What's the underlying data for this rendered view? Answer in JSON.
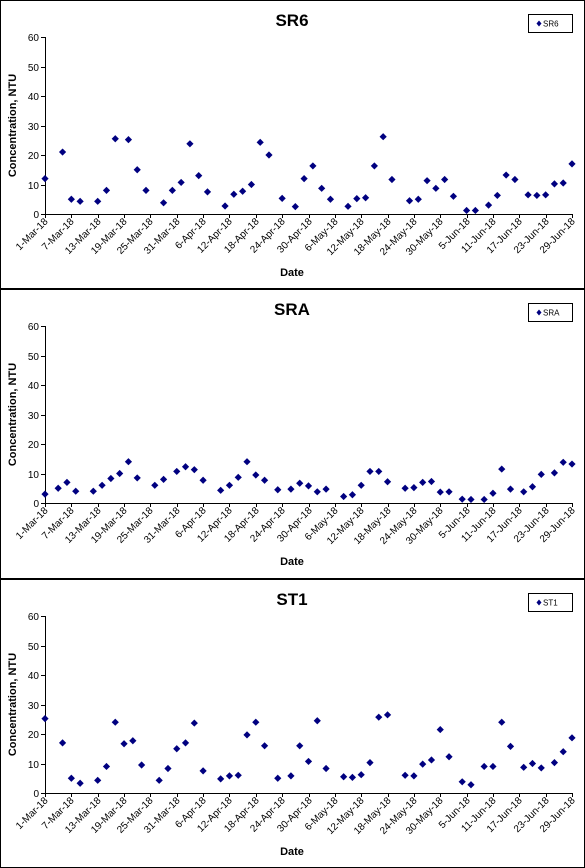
{
  "color": "#000080",
  "chart_data": [
    {
      "type": "scatter",
      "title": "SR6",
      "xlabel": "Date",
      "ylabel": "Concentration, NTU",
      "legend": "SR6",
      "legend_position": "top-right",
      "ylim": [
        0,
        60
      ],
      "yticks": [
        0,
        10,
        20,
        30,
        40,
        50,
        60
      ],
      "xlim": [
        "2018-03-01",
        "2018-06-29"
      ],
      "xtick_labels": [
        "1-Mar-18",
        "7-Mar-18",
        "13-Mar-18",
        "19-Mar-18",
        "25-Mar-18",
        "31-Mar-18",
        "6-Apr-18",
        "12-Apr-18",
        "18-Apr-18",
        "24-Apr-18",
        "30-Apr-18",
        "6-May-18",
        "12-May-18",
        "18-May-18",
        "24-May-18",
        "30-May-18",
        "5-Jun-18",
        "11-Jun-18",
        "17-Jun-18",
        "23-Jun-18",
        "29-Jun-18"
      ],
      "grid": false,
      "points": [
        {
          "x": "2018-03-01",
          "y": 12
        },
        {
          "x": "2018-03-05",
          "y": 21
        },
        {
          "x": "2018-03-07",
          "y": 5
        },
        {
          "x": "2018-03-09",
          "y": 4.3
        },
        {
          "x": "2018-03-13",
          "y": 4.3
        },
        {
          "x": "2018-03-15",
          "y": 8
        },
        {
          "x": "2018-03-17",
          "y": 25.5
        },
        {
          "x": "2018-03-20",
          "y": 25.2
        },
        {
          "x": "2018-03-22",
          "y": 15
        },
        {
          "x": "2018-03-24",
          "y": 8
        },
        {
          "x": "2018-03-28",
          "y": 3.8
        },
        {
          "x": "2018-03-30",
          "y": 8
        },
        {
          "x": "2018-04-01",
          "y": 10.7
        },
        {
          "x": "2018-04-03",
          "y": 23.8
        },
        {
          "x": "2018-04-05",
          "y": 13
        },
        {
          "x": "2018-04-07",
          "y": 7.5
        },
        {
          "x": "2018-04-11",
          "y": 2.7
        },
        {
          "x": "2018-04-13",
          "y": 6.7
        },
        {
          "x": "2018-04-15",
          "y": 7.7
        },
        {
          "x": "2018-04-17",
          "y": 10
        },
        {
          "x": "2018-04-19",
          "y": 24.3
        },
        {
          "x": "2018-04-21",
          "y": 20
        },
        {
          "x": "2018-04-24",
          "y": 5.3
        },
        {
          "x": "2018-04-27",
          "y": 2.5
        },
        {
          "x": "2018-04-29",
          "y": 12
        },
        {
          "x": "2018-05-01",
          "y": 16.3
        },
        {
          "x": "2018-05-03",
          "y": 8.7
        },
        {
          "x": "2018-05-05",
          "y": 5
        },
        {
          "x": "2018-05-09",
          "y": 2.6
        },
        {
          "x": "2018-05-11",
          "y": 5.2
        },
        {
          "x": "2018-05-13",
          "y": 5.5
        },
        {
          "x": "2018-05-15",
          "y": 16.3
        },
        {
          "x": "2018-05-17",
          "y": 26.2
        },
        {
          "x": "2018-05-19",
          "y": 11.7
        },
        {
          "x": "2018-05-23",
          "y": 4.5
        },
        {
          "x": "2018-05-25",
          "y": 5
        },
        {
          "x": "2018-05-27",
          "y": 11.3
        },
        {
          "x": "2018-05-29",
          "y": 8.7
        },
        {
          "x": "2018-05-31",
          "y": 11.7
        },
        {
          "x": "2018-06-02",
          "y": 6
        },
        {
          "x": "2018-06-05",
          "y": 1.2
        },
        {
          "x": "2018-06-07",
          "y": 1.2
        },
        {
          "x": "2018-06-10",
          "y": 3
        },
        {
          "x": "2018-06-12",
          "y": 6.3
        },
        {
          "x": "2018-06-14",
          "y": 13.2
        },
        {
          "x": "2018-06-16",
          "y": 11.7
        },
        {
          "x": "2018-06-19",
          "y": 6.5
        },
        {
          "x": "2018-06-21",
          "y": 6.3
        },
        {
          "x": "2018-06-23",
          "y": 6.5
        },
        {
          "x": "2018-06-25",
          "y": 10.2
        },
        {
          "x": "2018-06-27",
          "y": 10.5
        },
        {
          "x": "2018-06-29",
          "y": 17
        }
      ]
    },
    {
      "type": "scatter",
      "title": "SRA",
      "xlabel": "Date",
      "ylabel": "Concentration, NTU",
      "legend": "SRA",
      "legend_position": "top-right",
      "ylim": [
        0,
        60
      ],
      "yticks": [
        0,
        10,
        20,
        30,
        40,
        50,
        60
      ],
      "xlim": [
        "2018-03-01",
        "2018-06-29"
      ],
      "xtick_labels": [
        "1-Mar-18",
        "7-Mar-18",
        "13-Mar-18",
        "19-Mar-18",
        "25-Mar-18",
        "31-Mar-18",
        "6-Apr-18",
        "12-Apr-18",
        "18-Apr-18",
        "24-Apr-18",
        "30-Apr-18",
        "6-May-18",
        "12-May-18",
        "18-May-18",
        "24-May-18",
        "30-May-18",
        "5-Jun-18",
        "11-Jun-18",
        "17-Jun-18",
        "23-Jun-18",
        "29-Jun-18"
      ],
      "grid": false,
      "points": [
        {
          "x": "2018-03-01",
          "y": 3
        },
        {
          "x": "2018-03-04",
          "y": 5
        },
        {
          "x": "2018-03-06",
          "y": 7
        },
        {
          "x": "2018-03-08",
          "y": 4
        },
        {
          "x": "2018-03-12",
          "y": 4
        },
        {
          "x": "2018-03-14",
          "y": 6
        },
        {
          "x": "2018-03-16",
          "y": 8.3
        },
        {
          "x": "2018-03-18",
          "y": 10
        },
        {
          "x": "2018-03-20",
          "y": 14
        },
        {
          "x": "2018-03-22",
          "y": 8.5
        },
        {
          "x": "2018-03-26",
          "y": 6
        },
        {
          "x": "2018-03-28",
          "y": 8
        },
        {
          "x": "2018-03-31",
          "y": 10.7
        },
        {
          "x": "2018-04-02",
          "y": 12.3
        },
        {
          "x": "2018-04-04",
          "y": 11.3
        },
        {
          "x": "2018-04-06",
          "y": 7.7
        },
        {
          "x": "2018-04-10",
          "y": 4.3
        },
        {
          "x": "2018-04-12",
          "y": 6
        },
        {
          "x": "2018-04-14",
          "y": 8.7
        },
        {
          "x": "2018-04-16",
          "y": 14
        },
        {
          "x": "2018-04-18",
          "y": 9.5
        },
        {
          "x": "2018-04-20",
          "y": 7.7
        },
        {
          "x": "2018-04-23",
          "y": 4.5
        },
        {
          "x": "2018-04-26",
          "y": 4.7
        },
        {
          "x": "2018-04-28",
          "y": 6.7
        },
        {
          "x": "2018-04-30",
          "y": 5.8
        },
        {
          "x": "2018-05-02",
          "y": 3.8
        },
        {
          "x": "2018-05-04",
          "y": 4.7
        },
        {
          "x": "2018-05-08",
          "y": 2.2
        },
        {
          "x": "2018-05-10",
          "y": 2.8
        },
        {
          "x": "2018-05-12",
          "y": 6
        },
        {
          "x": "2018-05-14",
          "y": 10.7
        },
        {
          "x": "2018-05-16",
          "y": 10.7
        },
        {
          "x": "2018-05-18",
          "y": 7.2
        },
        {
          "x": "2018-05-22",
          "y": 5
        },
        {
          "x": "2018-05-24",
          "y": 5.2
        },
        {
          "x": "2018-05-26",
          "y": 7
        },
        {
          "x": "2018-05-28",
          "y": 7.3
        },
        {
          "x": "2018-05-30",
          "y": 3.7
        },
        {
          "x": "2018-06-01",
          "y": 3.8
        },
        {
          "x": "2018-06-04",
          "y": 1.3
        },
        {
          "x": "2018-06-06",
          "y": 1.2
        },
        {
          "x": "2018-06-09",
          "y": 1.2
        },
        {
          "x": "2018-06-11",
          "y": 3.3
        },
        {
          "x": "2018-06-13",
          "y": 11.5
        },
        {
          "x": "2018-06-15",
          "y": 4.7
        },
        {
          "x": "2018-06-18",
          "y": 3.8
        },
        {
          "x": "2018-06-20",
          "y": 5.5
        },
        {
          "x": "2018-06-22",
          "y": 9.7
        },
        {
          "x": "2018-06-25",
          "y": 10.2
        },
        {
          "x": "2018-06-27",
          "y": 13.8
        },
        {
          "x": "2018-06-29",
          "y": 13.2
        }
      ]
    },
    {
      "type": "scatter",
      "title": "ST1",
      "xlabel": "Date",
      "ylabel": "Concentration, NTU",
      "legend": "ST1",
      "legend_position": "top-right",
      "ylim": [
        0,
        60
      ],
      "yticks": [
        0,
        10,
        20,
        30,
        40,
        50,
        60
      ],
      "xlim": [
        "2018-03-01",
        "2018-06-29"
      ],
      "xtick_labels": [
        "1-Mar-18",
        "7-Mar-18",
        "13-Mar-18",
        "19-Mar-18",
        "25-Mar-18",
        "31-Mar-18",
        "6-Apr-18",
        "12-Apr-18",
        "18-Apr-18",
        "24-Apr-18",
        "30-Apr-18",
        "6-May-18",
        "12-May-18",
        "18-May-18",
        "24-May-18",
        "30-May-18",
        "5-Jun-18",
        "11-Jun-18",
        "17-Jun-18",
        "23-Jun-18",
        "29-Jun-18"
      ],
      "grid": false,
      "points": [
        {
          "x": "2018-03-01",
          "y": 25.2
        },
        {
          "x": "2018-03-05",
          "y": 17
        },
        {
          "x": "2018-03-07",
          "y": 5
        },
        {
          "x": "2018-03-09",
          "y": 3.3
        },
        {
          "x": "2018-03-13",
          "y": 4.3
        },
        {
          "x": "2018-03-15",
          "y": 9
        },
        {
          "x": "2018-03-17",
          "y": 24
        },
        {
          "x": "2018-03-19",
          "y": 16.7
        },
        {
          "x": "2018-03-21",
          "y": 17.7
        },
        {
          "x": "2018-03-23",
          "y": 9.5
        },
        {
          "x": "2018-03-27",
          "y": 4.3
        },
        {
          "x": "2018-03-29",
          "y": 8.3
        },
        {
          "x": "2018-03-31",
          "y": 15
        },
        {
          "x": "2018-04-02",
          "y": 17
        },
        {
          "x": "2018-04-04",
          "y": 23.7
        },
        {
          "x": "2018-04-06",
          "y": 7.5
        },
        {
          "x": "2018-04-10",
          "y": 4.8
        },
        {
          "x": "2018-04-12",
          "y": 5.8
        },
        {
          "x": "2018-04-14",
          "y": 6
        },
        {
          "x": "2018-04-16",
          "y": 19.7
        },
        {
          "x": "2018-04-18",
          "y": 24
        },
        {
          "x": "2018-04-20",
          "y": 16
        },
        {
          "x": "2018-04-23",
          "y": 5
        },
        {
          "x": "2018-04-26",
          "y": 5.8
        },
        {
          "x": "2018-04-28",
          "y": 16
        },
        {
          "x": "2018-04-30",
          "y": 10.7
        },
        {
          "x": "2018-05-02",
          "y": 24.5
        },
        {
          "x": "2018-05-04",
          "y": 8.3
        },
        {
          "x": "2018-05-08",
          "y": 5.5
        },
        {
          "x": "2018-05-10",
          "y": 5.3
        },
        {
          "x": "2018-05-12",
          "y": 6.2
        },
        {
          "x": "2018-05-14",
          "y": 10.3
        },
        {
          "x": "2018-05-16",
          "y": 25.7
        },
        {
          "x": "2018-05-18",
          "y": 26.5
        },
        {
          "x": "2018-05-22",
          "y": 6
        },
        {
          "x": "2018-05-24",
          "y": 5.8
        },
        {
          "x": "2018-05-26",
          "y": 9.8
        },
        {
          "x": "2018-05-28",
          "y": 11.2
        },
        {
          "x": "2018-05-30",
          "y": 21.5
        },
        {
          "x": "2018-06-01",
          "y": 12.3
        },
        {
          "x": "2018-06-04",
          "y": 3.8
        },
        {
          "x": "2018-06-06",
          "y": 2.8
        },
        {
          "x": "2018-06-09",
          "y": 9
        },
        {
          "x": "2018-06-11",
          "y": 9
        },
        {
          "x": "2018-06-13",
          "y": 24
        },
        {
          "x": "2018-06-15",
          "y": 15.8
        },
        {
          "x": "2018-06-18",
          "y": 8.7
        },
        {
          "x": "2018-06-20",
          "y": 10
        },
        {
          "x": "2018-06-22",
          "y": 8.5
        },
        {
          "x": "2018-06-25",
          "y": 10.3
        },
        {
          "x": "2018-06-27",
          "y": 14
        },
        {
          "x": "2018-06-29",
          "y": 18.7
        }
      ]
    }
  ]
}
